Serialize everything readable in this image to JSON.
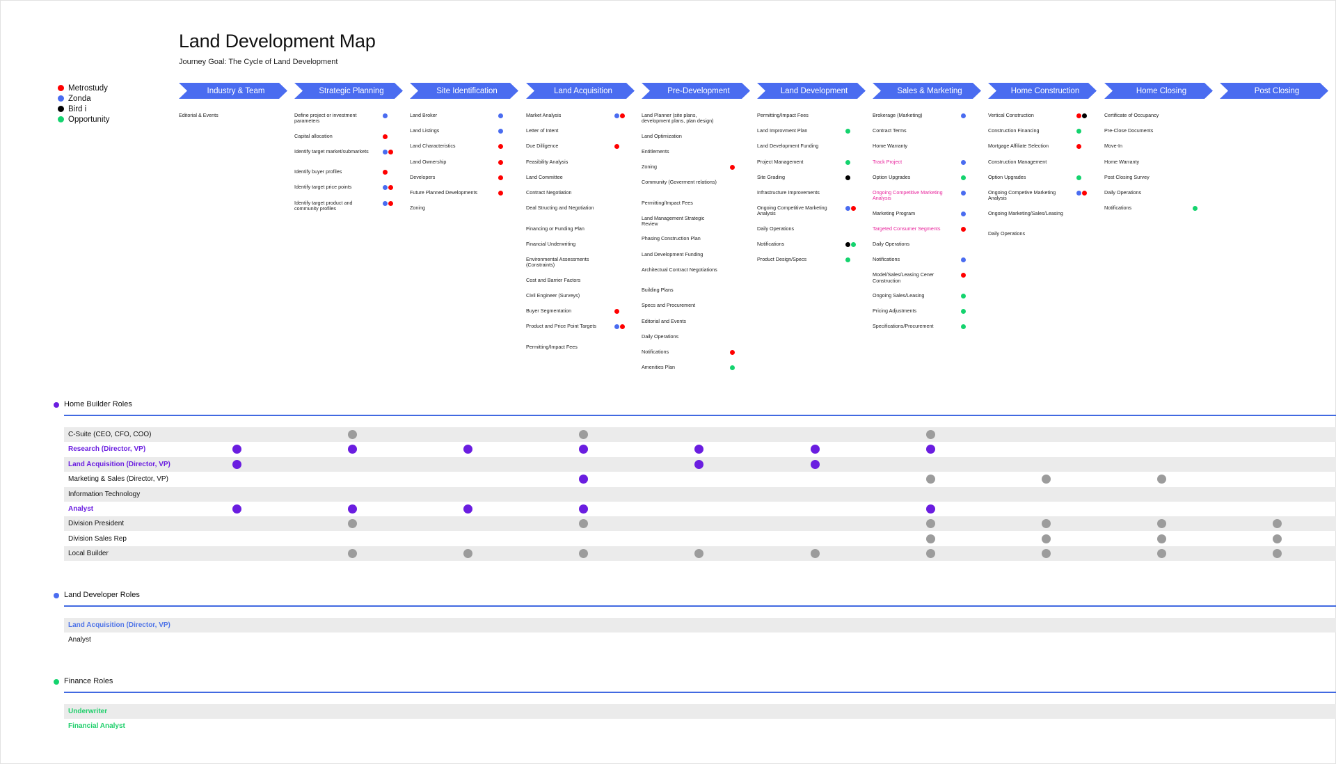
{
  "header": {
    "title": "Land Development Map",
    "subtitle": "Journey Goal: The Cycle of Land Development"
  },
  "colors": {
    "metrostudy": "#ff0000",
    "zonda": "#4a6cf0",
    "bird": "#000000",
    "opportunity": "#14d36e",
    "phase_blue": "#4a6cf0",
    "role_purple": "#6a1de0",
    "role_gray": "#9c9c9c",
    "developer_blue": "#4a6cf0",
    "finance_green": "#14d36e"
  },
  "legend": [
    {
      "label": "Metrostudy",
      "color": "metrostudy"
    },
    {
      "label": "Zonda",
      "color": "zonda"
    },
    {
      "label": "Bird i",
      "color": "bird"
    },
    {
      "label": "Opportunity",
      "color": "opportunity"
    }
  ],
  "phases": [
    {
      "label": "Industry & Team",
      "tasks": [
        {
          "text": "Editorial & Events",
          "dots": []
        }
      ]
    },
    {
      "label": "Strategic Planning",
      "tasks": [
        {
          "text": "Define project or investment parameters",
          "dots": [
            "zonda"
          ]
        },
        {
          "text": "Capital allocation",
          "dots": [
            "metrostudy"
          ]
        },
        {
          "text": "Identify target market/submarkets",
          "dots": [
            "zonda",
            "metrostudy"
          ]
        },
        {
          "text": "Identify buyer profiles",
          "dots": [
            "metrostudy"
          ]
        },
        {
          "text": "Identify target price points",
          "dots": [
            "zonda",
            "metrostudy"
          ]
        },
        {
          "text": "Identify target product and community profiles",
          "dots": [
            "zonda",
            "metrostudy"
          ]
        }
      ]
    },
    {
      "label": "Site Identification",
      "tasks": [
        {
          "text": "Land Broker",
          "dots": [
            "zonda"
          ]
        },
        {
          "text": "Land Listings",
          "dots": [
            "zonda"
          ]
        },
        {
          "text": "Land Characteristics",
          "dots": [
            "metrostudy"
          ]
        },
        {
          "text": "Land Ownership",
          "dots": [
            "metrostudy"
          ]
        },
        {
          "text": "Developers",
          "dots": [
            "metrostudy"
          ]
        },
        {
          "text": "Future Planned Developments",
          "dots": [
            "metrostudy"
          ]
        },
        {
          "text": "Zoning",
          "dots": []
        }
      ]
    },
    {
      "label": "Land Acquisition",
      "tasks": [
        {
          "text": "Market Analysis",
          "dots": [
            "zonda",
            "metrostudy"
          ]
        },
        {
          "text": "Letter of Intent",
          "dots": []
        },
        {
          "text": "Due Dilligence",
          "dots": [
            "metrostudy"
          ]
        },
        {
          "text": "Feasibility Analysis",
          "dots": []
        },
        {
          "text": "Land Committee",
          "dots": []
        },
        {
          "text": "Contract Negotiation",
          "dots": []
        },
        {
          "text": "Deal Structing and Negotiation",
          "dots": []
        },
        {
          "text": "Financing or Funding Plan",
          "dots": []
        },
        {
          "text": "Financial Underwriting",
          "dots": []
        },
        {
          "text": "Environmental Assessments (Constraints)",
          "dots": []
        },
        {
          "text": "Cost and Barrier Factors",
          "dots": []
        },
        {
          "text": "Civil Engineer (Surveys)",
          "dots": []
        },
        {
          "text": "Buyer Segmentation",
          "dots": [
            "metrostudy"
          ]
        },
        {
          "text": "Product and Price Point Targets",
          "dots": [
            "zonda",
            "metrostudy"
          ]
        },
        {
          "text": "Permitting/Impact Fees",
          "dots": []
        }
      ]
    },
    {
      "label": "Pre-Development",
      "tasks": [
        {
          "text": "Land Planner (site plans, development plans, plan design)",
          "dots": []
        },
        {
          "text": "Land Optimization",
          "dots": []
        },
        {
          "text": "Entitlements",
          "dots": []
        },
        {
          "text": "Zoning",
          "dots": [
            "metrostudy"
          ]
        },
        {
          "text": "Community (Goverment relations)",
          "dots": []
        },
        {
          "text": "Permitting/Impact Fees",
          "dots": []
        },
        {
          "text": "Land Management Strategic Review",
          "dots": []
        },
        {
          "text": "Phasing Construction Plan",
          "dots": []
        },
        {
          "text": "Land Development Funding",
          "dots": []
        },
        {
          "text": "Architectual Contract Negotiations",
          "dots": []
        },
        {
          "text": "Building Plans",
          "dots": []
        },
        {
          "text": "Specs and Procurement",
          "dots": []
        },
        {
          "text": "Editorial and Events",
          "dots": []
        },
        {
          "text": "Daily Operations",
          "dots": []
        },
        {
          "text": "Notifications",
          "dots": [
            "metrostudy"
          ]
        },
        {
          "text": "Amenities Plan",
          "dots": [
            "opportunity"
          ]
        }
      ]
    },
    {
      "label": "Land Development",
      "tasks": [
        {
          "text": "Permitting/Impact Fees",
          "dots": []
        },
        {
          "text": "Land Improvment Plan",
          "dots": [
            "opportunity"
          ]
        },
        {
          "text": "Land Development Funding",
          "dots": []
        },
        {
          "text": "Project Management",
          "dots": [
            "opportunity"
          ]
        },
        {
          "text": "Site Grading",
          "dots": [
            "bird"
          ]
        },
        {
          "text": "Infrastructure Improvements",
          "dots": []
        },
        {
          "text": "Ongoing Competitive Marketing Analysis",
          "dots": [
            "zonda",
            "metrostudy"
          ]
        },
        {
          "text": "Daily Operations",
          "dots": []
        },
        {
          "text": "Notifications",
          "dots": [
            "bird",
            "opportunity"
          ]
        },
        {
          "text": "Product Design/Specs",
          "dots": [
            "opportunity"
          ]
        }
      ]
    },
    {
      "label": "Sales & Marketing",
      "tasks": [
        {
          "text": "Brokerage (Marketing)",
          "dots": [
            "zonda"
          ]
        },
        {
          "text": "Contract Terms",
          "dots": []
        },
        {
          "text": "Home Warranty",
          "dots": []
        },
        {
          "text": "Track Project",
          "dots": [
            "zonda"
          ],
          "pink": true
        },
        {
          "text": "Option Upgrades",
          "dots": [
            "opportunity"
          ]
        },
        {
          "text": "Ongoing Competitive Marketing Analysis",
          "dots": [
            "zonda"
          ],
          "pink": true
        },
        {
          "text": "Marketing Program",
          "dots": [
            "zonda"
          ]
        },
        {
          "text": "Targeted Consumer Segments",
          "dots": [
            "metrostudy"
          ],
          "pink": true
        },
        {
          "text": "Daily Operations",
          "dots": []
        },
        {
          "text": "Notifications",
          "dots": [
            "zonda"
          ]
        },
        {
          "text": "Model/Sales/Leasing Cener Construction",
          "dots": [
            "metrostudy"
          ]
        },
        {
          "text": "Ongoing Sales/Leasing",
          "dots": [
            "opportunity"
          ]
        },
        {
          "text": "Pricing Adjustments",
          "dots": [
            "opportunity"
          ]
        },
        {
          "text": "Specifications/Procurement",
          "dots": [
            "opportunity"
          ]
        }
      ]
    },
    {
      "label": "Home Construction",
      "tasks": [
        {
          "text": "Vertical Construction",
          "dots": [
            "metrostudy",
            "bird"
          ]
        },
        {
          "text": "Construction Financing",
          "dots": [
            "opportunity"
          ]
        },
        {
          "text": "Mortgage Affiliate Selection",
          "dots": [
            "metrostudy"
          ]
        },
        {
          "text": "Construction Management",
          "dots": []
        },
        {
          "text": "Option Upgrades",
          "dots": [
            "opportunity"
          ]
        },
        {
          "text": "Ongoing Competive Marketing Analysis",
          "dots": [
            "zonda",
            "metrostudy"
          ]
        },
        {
          "text": "Ongoing Marketing/Sales/Leasing",
          "dots": []
        },
        {
          "text": "Daily Operations",
          "dots": []
        }
      ]
    },
    {
      "label": "Home Closing",
      "tasks": [
        {
          "text": "Certificate of Occupancy",
          "dots": []
        },
        {
          "text": "Pre-Close Documents",
          "dots": []
        },
        {
          "text": "Move-In",
          "dots": []
        },
        {
          "text": "Home Warranty",
          "dots": []
        },
        {
          "text": "Post Closing Survey",
          "dots": []
        },
        {
          "text": "Daily Operations",
          "dots": []
        },
        {
          "text": "Notifications",
          "dots": [
            "opportunity"
          ]
        }
      ]
    },
    {
      "label": "Post Closing",
      "tasks": []
    }
  ],
  "sections": [
    {
      "title": "Home Builder Roles",
      "dot": "role_purple",
      "rows": [
        {
          "label": "C-Suite (CEO, CFO, COO)",
          "style": "",
          "shaded": true,
          "marks": [
            null,
            "g",
            null,
            "g",
            null,
            null,
            "g",
            null,
            null,
            null
          ]
        },
        {
          "label": "Research (Director, VP)",
          "style": "purple",
          "shaded": false,
          "marks": [
            "p",
            "p",
            "p",
            "p",
            "p",
            "p",
            "p",
            null,
            null,
            null
          ]
        },
        {
          "label": "Land Acquisition (Director, VP)",
          "style": "purple",
          "shaded": true,
          "marks": [
            "p",
            null,
            null,
            null,
            "p",
            "p",
            null,
            null,
            null,
            null
          ]
        },
        {
          "label": "Marketing & Sales (Director, VP)",
          "style": "",
          "shaded": false,
          "marks": [
            null,
            null,
            null,
            "p",
            null,
            null,
            "g",
            "g",
            "g",
            null
          ]
        },
        {
          "label": "Information Technology",
          "style": "",
          "shaded": true,
          "marks": [
            null,
            null,
            null,
            null,
            null,
            null,
            null,
            null,
            null,
            null
          ]
        },
        {
          "label": "Analyst",
          "style": "purple",
          "shaded": false,
          "marks": [
            "p",
            "p",
            "p",
            "p",
            null,
            null,
            "p",
            null,
            null,
            null
          ]
        },
        {
          "label": "Division President",
          "style": "",
          "shaded": true,
          "marks": [
            null,
            "g",
            null,
            "g",
            null,
            null,
            "g",
            "g",
            "g",
            "g"
          ]
        },
        {
          "label": "Division Sales Rep",
          "style": "",
          "shaded": false,
          "marks": [
            null,
            null,
            null,
            null,
            null,
            null,
            "g",
            "g",
            "g",
            "g"
          ]
        },
        {
          "label": "Local Builder",
          "style": "",
          "shaded": true,
          "marks": [
            null,
            "g",
            "g",
            "g",
            "g",
            "g",
            "g",
            "g",
            "g",
            "g"
          ]
        }
      ]
    },
    {
      "title": "Land Developer Roles",
      "dot": "developer_blue",
      "rows": [
        {
          "label": "Land Acquisition (Director, VP)",
          "style": "blue",
          "shaded": true,
          "marks": []
        },
        {
          "label": "Analyst",
          "style": "",
          "shaded": false,
          "marks": []
        }
      ]
    },
    {
      "title": "Finance Roles",
      "dot": "finance_green",
      "rows": [
        {
          "label": "Underwriter",
          "style": "green",
          "shaded": true,
          "marks": []
        },
        {
          "label": "Financial Analyst",
          "style": "green",
          "shaded": false,
          "marks": []
        }
      ]
    }
  ]
}
